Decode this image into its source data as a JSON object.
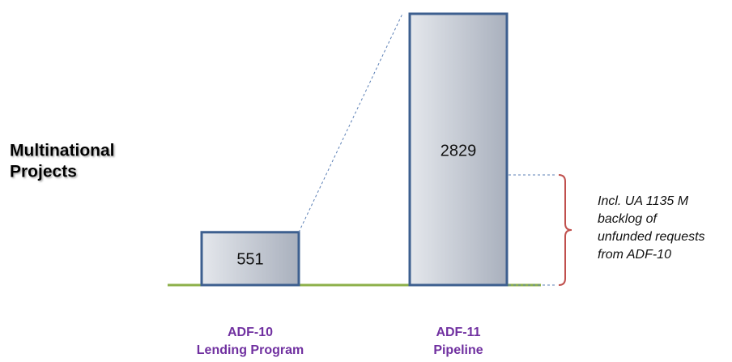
{
  "chart_data": {
    "type": "bar",
    "side_label": [
      "Multinational",
      "Projects"
    ],
    "categories": [
      [
        "ADF-10",
        "Lending Program"
      ],
      [
        "ADF-11",
        "Pipeline"
      ]
    ],
    "values": [
      551,
      2829
    ],
    "color": "#c9ced8",
    "edge_color": "#3d5f8f",
    "annotation": [
      "Incl. UA 1135 M",
      "backlog of",
      "unfunded requests",
      "from ADF-10"
    ]
  }
}
